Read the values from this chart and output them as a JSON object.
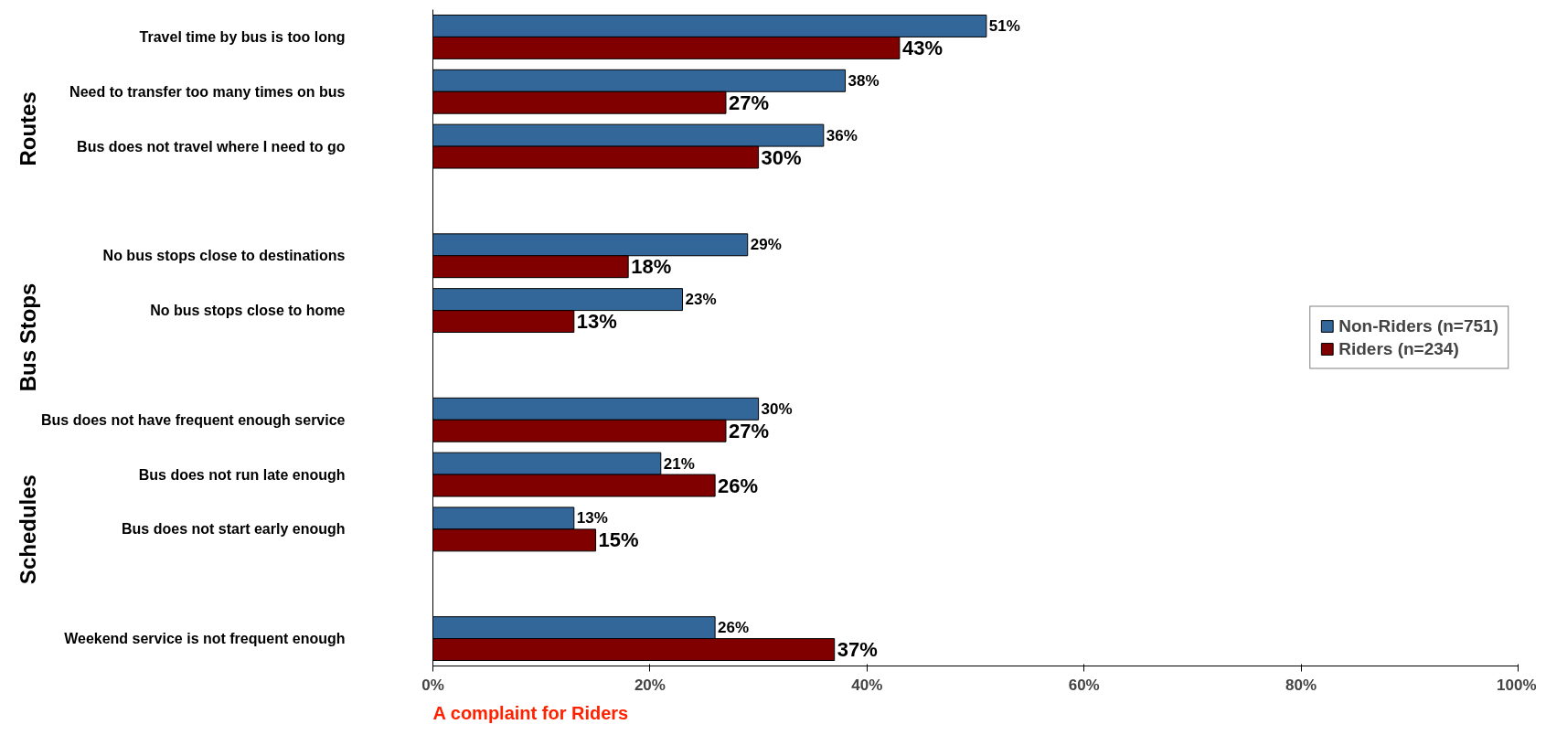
{
  "chart_data": {
    "type": "bar",
    "orientation": "horizontal",
    "categories": [
      "Travel time by bus is too long",
      "Need to transfer too many times on bus",
      "Bus does not travel where I need to go",
      null,
      "No bus stops close to destinations",
      "No bus stops close to home",
      null,
      "Bus does not have frequent enough service",
      "Bus does not run late enough",
      "Bus does not start early enough",
      null,
      "Weekend service is not frequent enough"
    ],
    "series": [
      {
        "name": "Non-Riders (n=751)",
        "color": "#336699",
        "values": [
          51,
          38,
          36,
          null,
          29,
          23,
          null,
          30,
          21,
          13,
          null,
          26
        ],
        "value_labels": [
          "51%",
          "38%",
          "36%",
          null,
          "29%",
          "23%",
          null,
          "30%",
          "21%",
          "13%",
          null,
          "26%"
        ]
      },
      {
        "name": "Riders (n=234)",
        "color": "#800000",
        "values": [
          43,
          27,
          30,
          null,
          18,
          13,
          null,
          27,
          26,
          15,
          null,
          37
        ],
        "value_labels": [
          "43%",
          "27%",
          "30%",
          null,
          "18%",
          "13%",
          null,
          "27%",
          "26%",
          "15%",
          null,
          "37%"
        ]
      }
    ],
    "xlim": [
      0,
      100
    ],
    "xticks": [
      {
        "value": 0,
        "label": "0%"
      },
      {
        "value": 20,
        "label": "20%"
      },
      {
        "value": 40,
        "label": "40%"
      },
      {
        "value": 60,
        "label": "60%"
      },
      {
        "value": 80,
        "label": "80%"
      },
      {
        "value": 100,
        "label": "100%"
      }
    ],
    "grid": false,
    "legend": "right",
    "annotations": [
      "Routes",
      "Bus Stops",
      "Schedules",
      "A complaint for Riders"
    ]
  }
}
